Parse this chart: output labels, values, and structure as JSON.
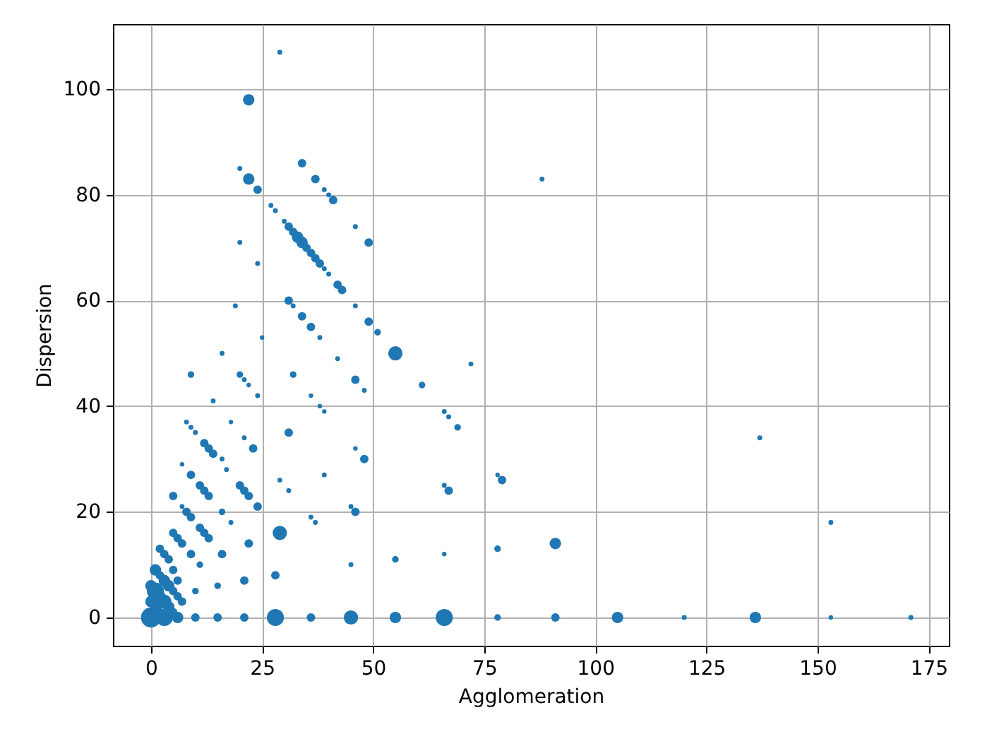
{
  "chart_data": {
    "type": "bubble",
    "xlabel": "Agglomeration",
    "ylabel": "Dispersion",
    "color": "#1f77b4",
    "marker": "circle",
    "grid": true,
    "xlim": [
      -8.55,
      179.55
    ],
    "ylim": [
      -5.35,
      112.35
    ],
    "xticks": [
      0,
      25,
      50,
      75,
      100,
      125,
      150,
      175
    ],
    "yticks": [
      0,
      20,
      40,
      60,
      80,
      100
    ],
    "x": [
      29,
      22,
      20,
      22,
      24,
      34,
      37,
      39,
      40,
      41,
      27,
      28,
      30,
      31,
      32,
      33,
      34,
      35,
      36,
      37,
      38,
      39,
      40,
      42,
      43,
      46,
      49,
      20,
      24,
      31,
      32,
      19,
      46,
      34,
      49,
      36,
      38,
      42,
      51,
      55,
      61,
      25,
      16,
      9,
      20,
      21,
      22,
      24,
      32,
      36,
      38,
      39,
      46,
      48,
      14,
      8,
      9,
      10,
      12,
      13,
      14,
      18,
      21,
      23,
      31,
      46,
      48,
      7,
      9,
      11,
      12,
      13,
      16,
      17,
      20,
      21,
      22,
      29,
      31,
      39,
      72,
      66,
      67,
      69,
      66,
      67,
      78,
      79,
      5,
      7,
      8,
      9,
      16,
      18,
      24,
      11,
      12,
      13,
      5,
      6,
      7,
      2,
      3,
      4,
      9,
      11,
      16,
      22,
      29,
      36,
      37,
      46,
      45,
      45,
      55,
      66,
      78,
      91,
      28,
      21,
      15,
      10,
      88,
      137,
      153,
      0,
      3,
      1,
      2,
      0,
      3,
      2,
      1,
      0,
      4,
      5,
      2,
      3,
      4,
      5,
      6,
      7,
      5,
      6,
      1,
      6,
      10,
      15,
      21,
      28,
      36,
      45,
      55,
      66,
      78,
      91,
      105,
      120,
      136,
      153,
      171
    ],
    "values": [
      107,
      98,
      85,
      83,
      81,
      86,
      83,
      81,
      80,
      79,
      78,
      77,
      75,
      74,
      73,
      72,
      71,
      70,
      69,
      68,
      67,
      66,
      65,
      63,
      62,
      74,
      71,
      71,
      67,
      60,
      59,
      59,
      59,
      57,
      56,
      55,
      53,
      49,
      54,
      50,
      44,
      53,
      50,
      46,
      46,
      45,
      44,
      42,
      46,
      42,
      40,
      39,
      45,
      43,
      41,
      37,
      36,
      35,
      33,
      32,
      31,
      37,
      34,
      32,
      35,
      32,
      30,
      29,
      27,
      25,
      24,
      23,
      30,
      28,
      25,
      24,
      23,
      26,
      24,
      27,
      48,
      39,
      38,
      36,
      25,
      24,
      27,
      26,
      23,
      21,
      20,
      19,
      20,
      18,
      21,
      17,
      16,
      15,
      16,
      15,
      14,
      13,
      12,
      11,
      12,
      10,
      12,
      14,
      16,
      19,
      18,
      20,
      21,
      10,
      11,
      12,
      13,
      14,
      8,
      7,
      6,
      5,
      83,
      34,
      18,
      0,
      0,
      2,
      1,
      3,
      3,
      4,
      5,
      6,
      2,
      1,
      8,
      7,
      6,
      5,
      4,
      3,
      9,
      7,
      9,
      0,
      0,
      0,
      0,
      0,
      0,
      0,
      0,
      0,
      0,
      0,
      0,
      0,
      0,
      0,
      0
    ],
    "sizes": [
      0.06,
      0.33,
      0.06,
      0.33,
      0.18,
      0.18,
      0.18,
      0.06,
      0.06,
      0.18,
      0.06,
      0.06,
      0.06,
      0.18,
      0.18,
      0.33,
      0.33,
      0.18,
      0.18,
      0.18,
      0.18,
      0.06,
      0.06,
      0.18,
      0.18,
      0.06,
      0.18,
      0.06,
      0.06,
      0.18,
      0.06,
      0.06,
      0.06,
      0.18,
      0.18,
      0.18,
      0.06,
      0.06,
      0.11,
      0.51,
      0.11,
      0.05,
      0.06,
      0.11,
      0.11,
      0.06,
      0.05,
      0.06,
      0.11,
      0.05,
      0.05,
      0.05,
      0.18,
      0.06,
      0.06,
      0.06,
      0.06,
      0.06,
      0.18,
      0.18,
      0.18,
      0.05,
      0.06,
      0.18,
      0.18,
      0.05,
      0.18,
      0.05,
      0.18,
      0.18,
      0.18,
      0.18,
      0.06,
      0.06,
      0.18,
      0.18,
      0.18,
      0.06,
      0.06,
      0.06,
      0.06,
      0.06,
      0.06,
      0.11,
      0.06,
      0.18,
      0.05,
      0.18,
      0.18,
      0.06,
      0.18,
      0.18,
      0.11,
      0.06,
      0.18,
      0.18,
      0.18,
      0.18,
      0.18,
      0.18,
      0.18,
      0.18,
      0.18,
      0.18,
      0.18,
      0.11,
      0.18,
      0.18,
      0.51,
      0.06,
      0.06,
      0.18,
      0.06,
      0.06,
      0.11,
      0.05,
      0.11,
      0.33,
      0.18,
      0.18,
      0.11,
      0.11,
      0.06,
      0.06,
      0.06,
      1,
      0.73,
      0.33,
      0.18,
      0.33,
      0.51,
      0.33,
      0.73,
      0.33,
      0.33,
      0.18,
      0.18,
      0.33,
      0.33,
      0.18,
      0.18,
      0.18,
      0.18,
      0.18,
      0.33,
      0.33,
      0.18,
      0.18,
      0.18,
      0.73,
      0.18,
      0.51,
      0.33,
      0.73,
      0.11,
      0.18,
      0.33,
      0.06,
      0.33,
      0.05,
      0.06
    ]
  }
}
